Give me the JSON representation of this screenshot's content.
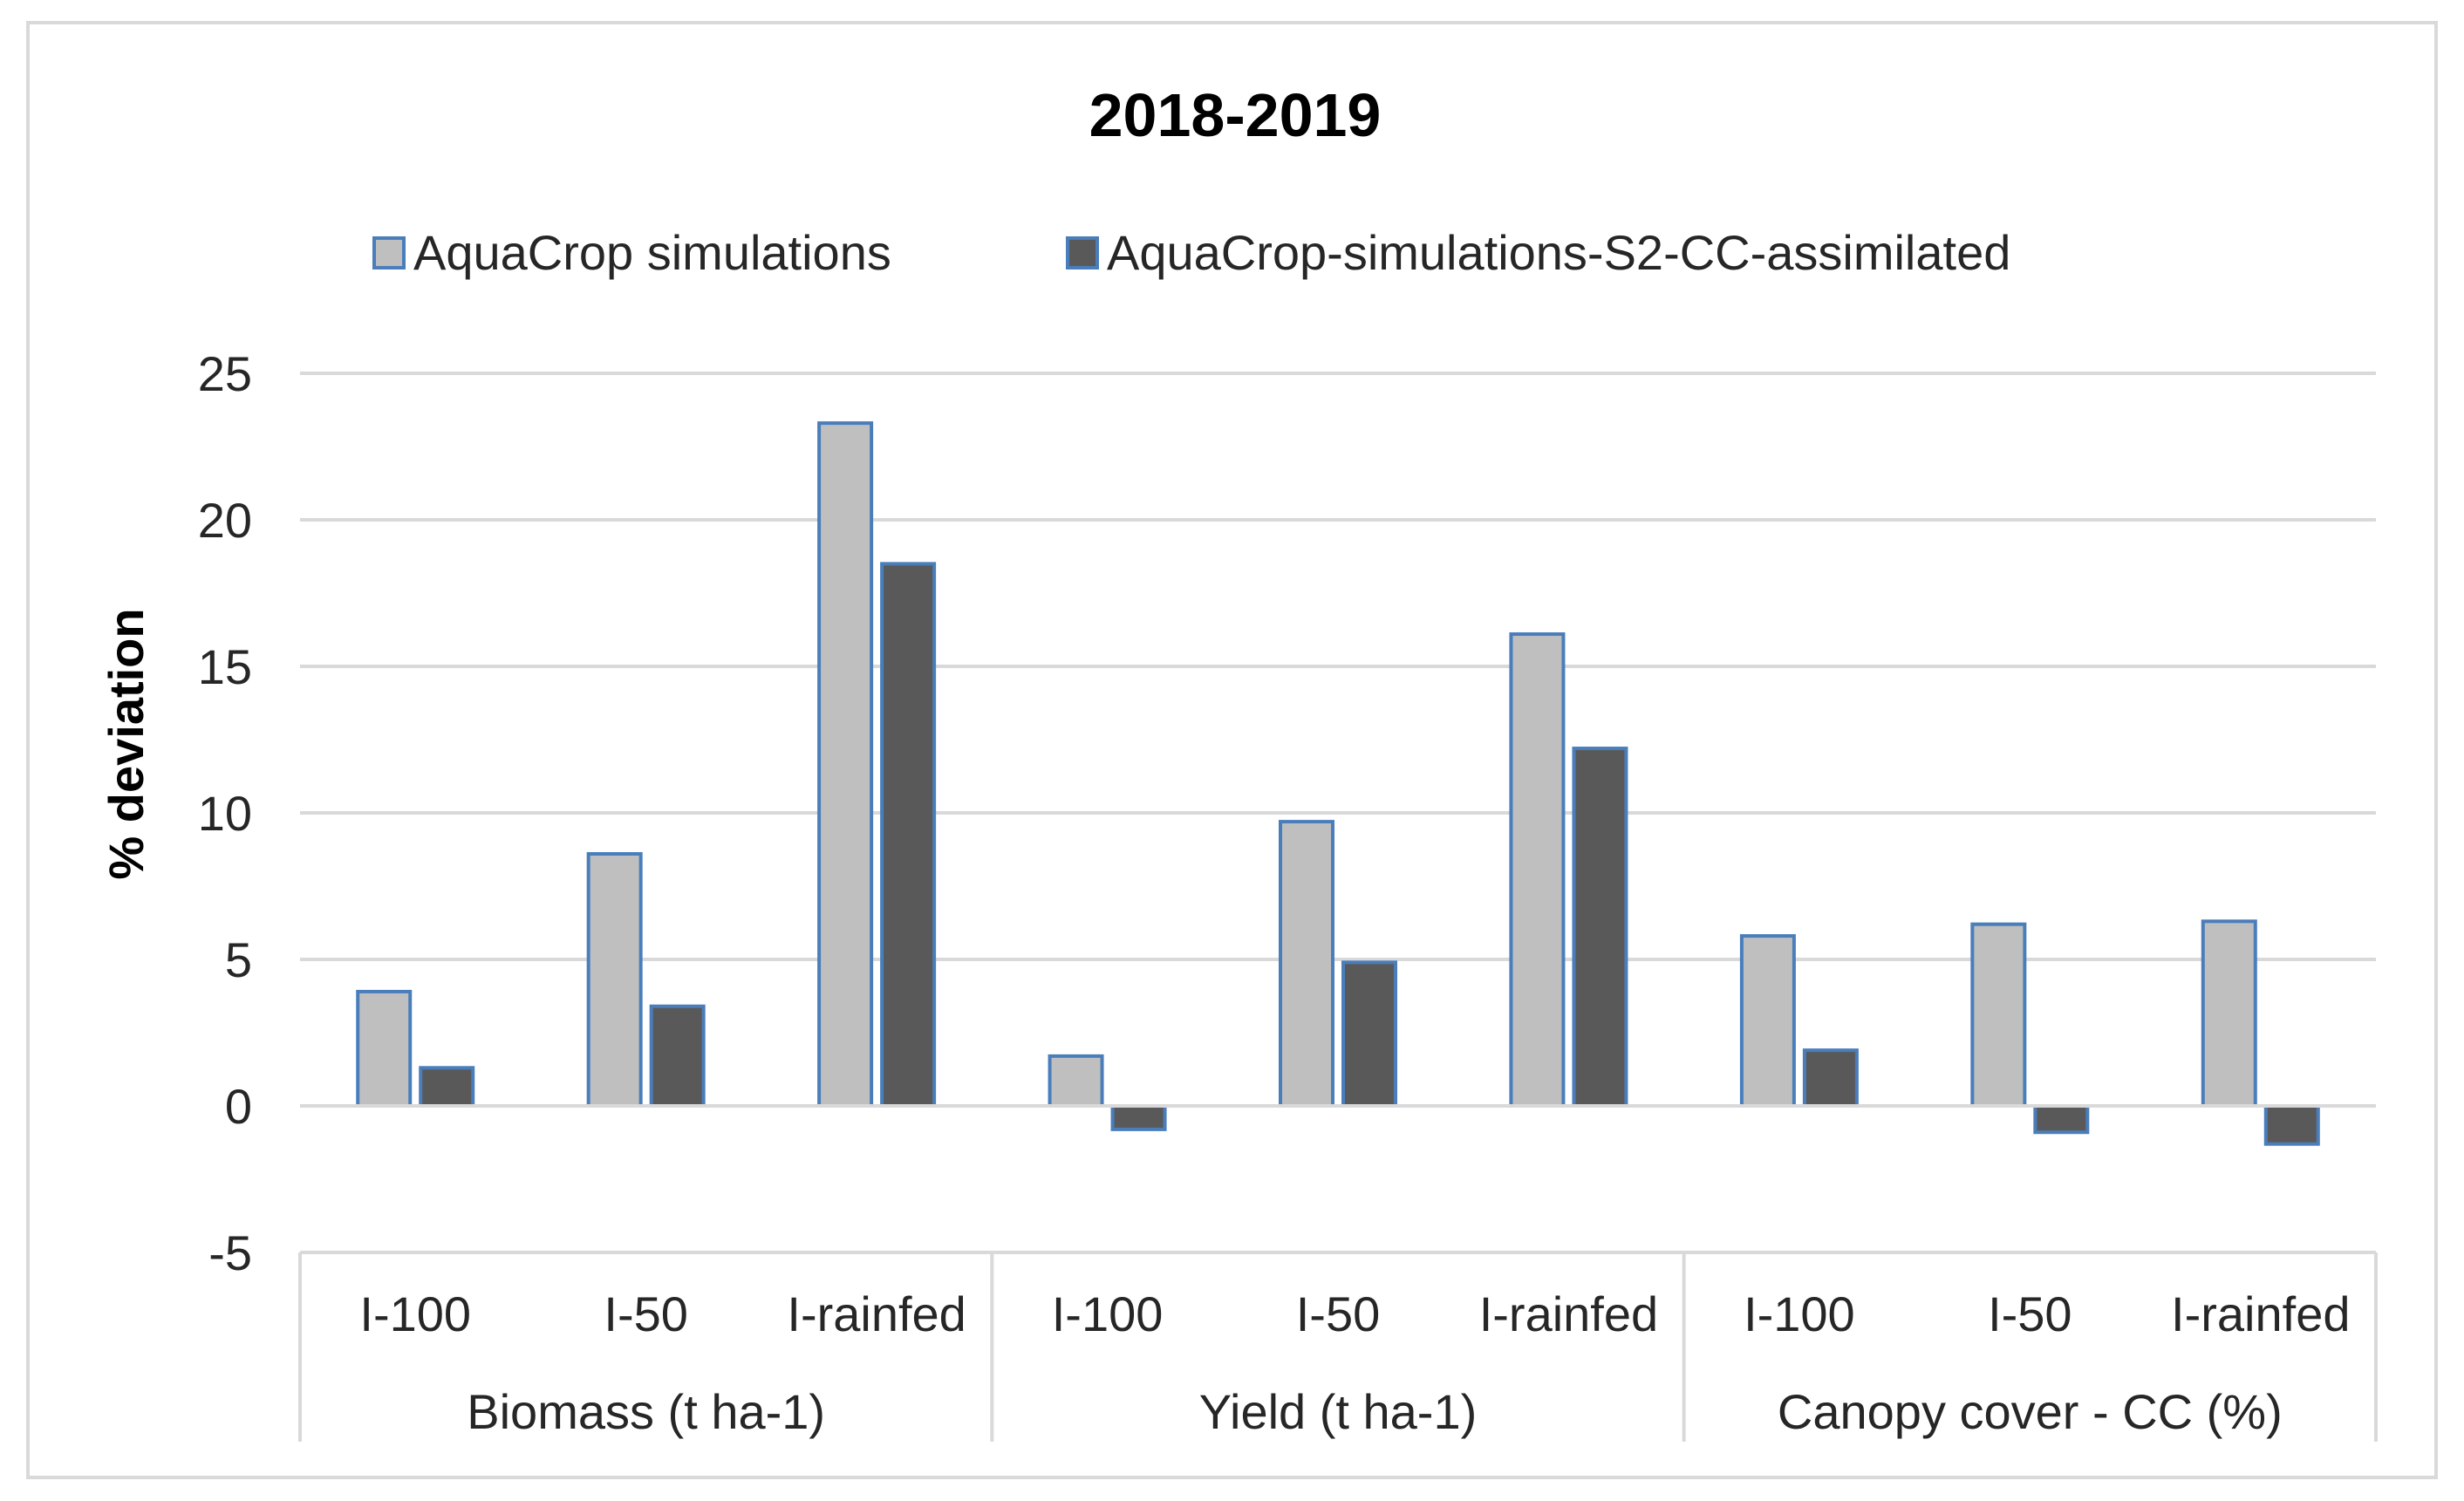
{
  "chart_data": {
    "type": "bar",
    "title": "2018-2019",
    "ylabel": "% deviation",
    "xlabel": "",
    "ylim": [
      -5,
      25
    ],
    "yticks": [
      -5,
      0,
      5,
      10,
      15,
      20,
      25
    ],
    "grid": true,
    "legend_position": "top",
    "categories": [
      "I-100",
      "I-50",
      "I-rainfed",
      "I-100",
      "I-50",
      "I-rainfed",
      "I-100",
      "I-50",
      "I-rainfed"
    ],
    "groups": [
      {
        "label": "Biomass (t ha-1)",
        "count": 3
      },
      {
        "label": "Yield (t ha-1)",
        "count": 3
      },
      {
        "label": "Canopy cover - CC (%)",
        "count": 3
      }
    ],
    "series": [
      {
        "name": "AquaCrop simulations",
        "color": "#bfbfbf",
        "values": [
          3.9,
          8.6,
          23.3,
          1.7,
          9.7,
          16.1,
          5.8,
          6.2,
          6.3
        ]
      },
      {
        "name": "AquaCrop-simulations-S2-CC-assimilated",
        "color": "#595959",
        "values": [
          1.3,
          3.4,
          18.5,
          -0.8,
          4.9,
          12.2,
          1.9,
          -0.9,
          -1.3
        ]
      }
    ],
    "bar_outline_color": "#4a7ebb",
    "gridline_color": "#d9d9d9"
  }
}
